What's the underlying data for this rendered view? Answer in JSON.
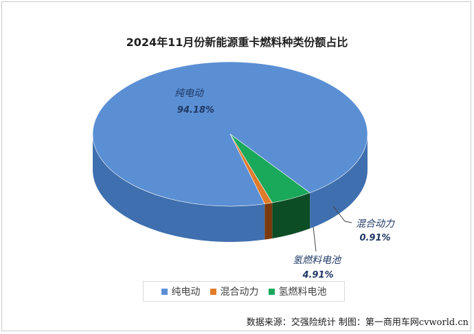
{
  "chart_data": {
    "type": "pie",
    "title": "2024年11月份新能源重卡燃料种类份额占比",
    "categories": [
      "纯电动",
      "混合动力",
      "氢燃料电池"
    ],
    "values": [
      94.18,
      0.91,
      4.91
    ],
    "value_labels": [
      "94.18%",
      "0.91%",
      "4.91%"
    ],
    "colors": [
      "#5b8fd4",
      "#e07b2a",
      "#1aa85a"
    ],
    "side_colors": [
      "#3f6fae",
      "#7a3a0e",
      "#0d4d26"
    ],
    "legend_position": "bottom",
    "style": "3d"
  },
  "footer": {
    "source": "数据来源：交强险统计  制图：第一商用车网cvworld.cn"
  }
}
